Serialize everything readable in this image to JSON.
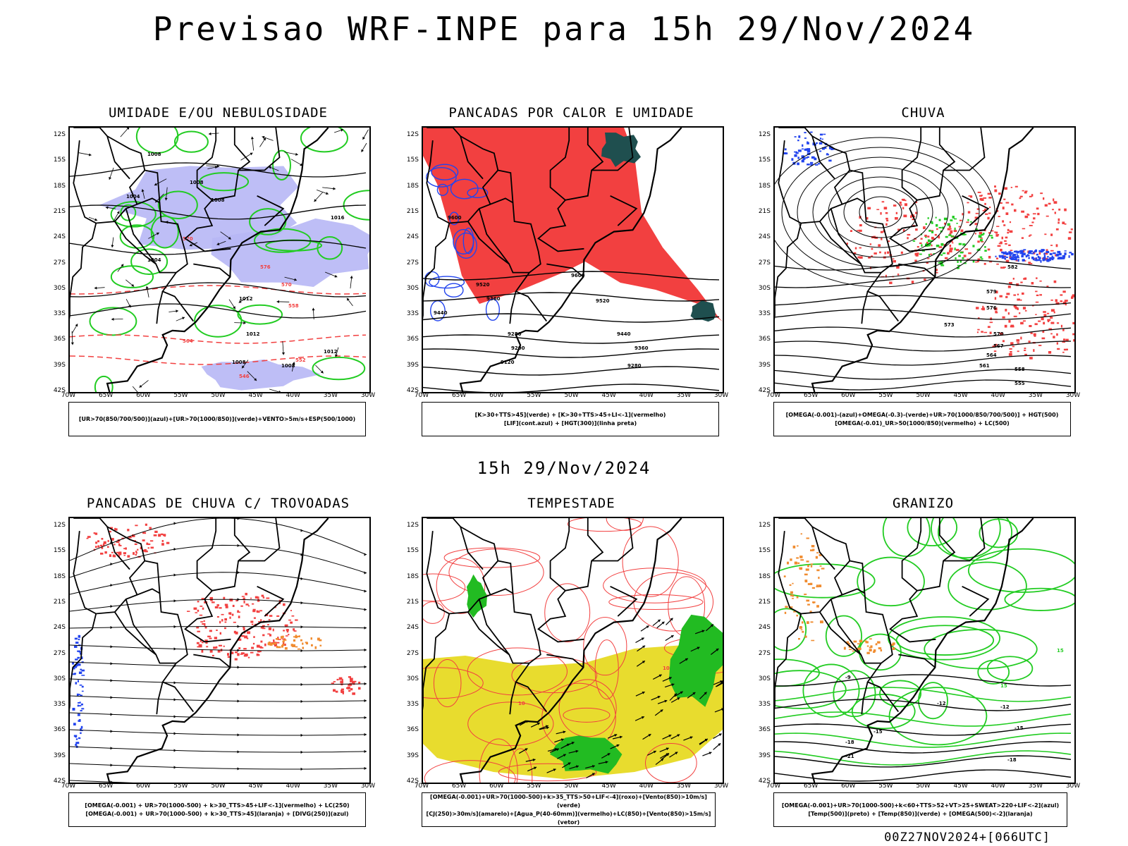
{
  "header": {
    "title": "Previsao WRF-INPE  para 15h 29/Nov/2024"
  },
  "subtitle": "15h 29/Nov/2024",
  "footer": "00Z27NOV2024+[066UTC]",
  "axes": {
    "lat_labels": [
      "12S",
      "15S",
      "18S",
      "21S",
      "24S",
      "27S",
      "30S",
      "33S",
      "36S",
      "39S",
      "42S"
    ],
    "lon_labels": [
      "70W",
      "65W",
      "60W",
      "55W",
      "50W",
      "45W",
      "40W",
      "35W",
      "30W"
    ]
  },
  "colors": {
    "humidity_blue": "#b7b7f5",
    "humidity_green": "#22cc22",
    "red": "#f24040",
    "dark_teal": "#1f4f4f",
    "blue_line": "#2244ee",
    "orange": "#f08c30",
    "yellow": "#e8dc2e",
    "green_fill": "#22bb22"
  },
  "panels": [
    {
      "title": "UMIDADE E/OU NEBULOSIDADE",
      "legend": [
        "[UR>70(850/700/500)](azul)+[UR>70(1000/850)](verde)+VENTO>5m/s+ESP(500/1000)"
      ],
      "labels": [
        "1008",
        "1008",
        "1008",
        "1004",
        "1004",
        "1012",
        "1012",
        "1016",
        "1012",
        "1008",
        "1008",
        "570",
        "570",
        "576",
        "564",
        "558",
        "552",
        "546"
      ]
    },
    {
      "title": "PANCADAS POR CALOR E UMIDADE",
      "legend": [
        "[K>30+TTS>45](verde) + [K>30+TTS>45+LI<-1](vermelho)",
        "[LIF](cont.azul) + [HGT(300)](linha preta)"
      ],
      "labels": [
        "9600",
        "9520",
        "9440",
        "9360",
        "9280",
        "9200",
        "9120",
        "9600",
        "9520",
        "9440",
        "9360",
        "9280"
      ]
    },
    {
      "title": "CHUVA",
      "legend": [
        "[OMEGA(-0.001)-(azul)+OMEGA(-0.3)-(verde)+UR>70(1000/850/700/500)] + HGT(500)",
        "[OMEGA(-0.01)_UR>50(1000/850)(vermelho) + LC(500)"
      ],
      "labels": [
        "582",
        "579",
        "576",
        "573",
        "570",
        "567",
        "564",
        "561",
        "558",
        "555"
      ]
    },
    {
      "title": "PANCADAS DE CHUVA C/ TROVOADAS",
      "legend": [
        "[OMEGA(-0.001) + UR>70(1000-500) + k>30_TTS>45+LIF<-1](vermelho) + LC(250)",
        "[OMEGA(-0.001) + UR>70(1000-500) + k>30_TTS>45](laranja) + [DIVG(250)](azul)"
      ],
      "labels": []
    },
    {
      "title": "TEMPESTADE",
      "legend": [
        "[OMEGA(-0.001)+UR>70(1000-500)+k>35_TTS>50+LIF<-4](roxo)+[Vento(850)>10m/s](verde)",
        "[CJ(250)>30m/s](amarelo)+[Agua_P(40-60mm)](vermelho)+LC(850)+[Vento(850)>15m/s](vetor)"
      ],
      "labels": [
        "10",
        "10"
      ]
    },
    {
      "title": "GRANIZO",
      "legend": [
        "[OMEGA(-0.001)+UR>70(1000-500)+k<60+TTS>52+VT>25+SWEAT>220+LIF<-2](azul)",
        "[Temp(500)](preto) + [Temp(850)](verde) + [OMEGA(500)<-2](laranja)"
      ],
      "labels": [
        "-9",
        "-12",
        "-15",
        "-18",
        "-21",
        "-12",
        "-15",
        "-18",
        "15",
        "15"
      ]
    }
  ]
}
